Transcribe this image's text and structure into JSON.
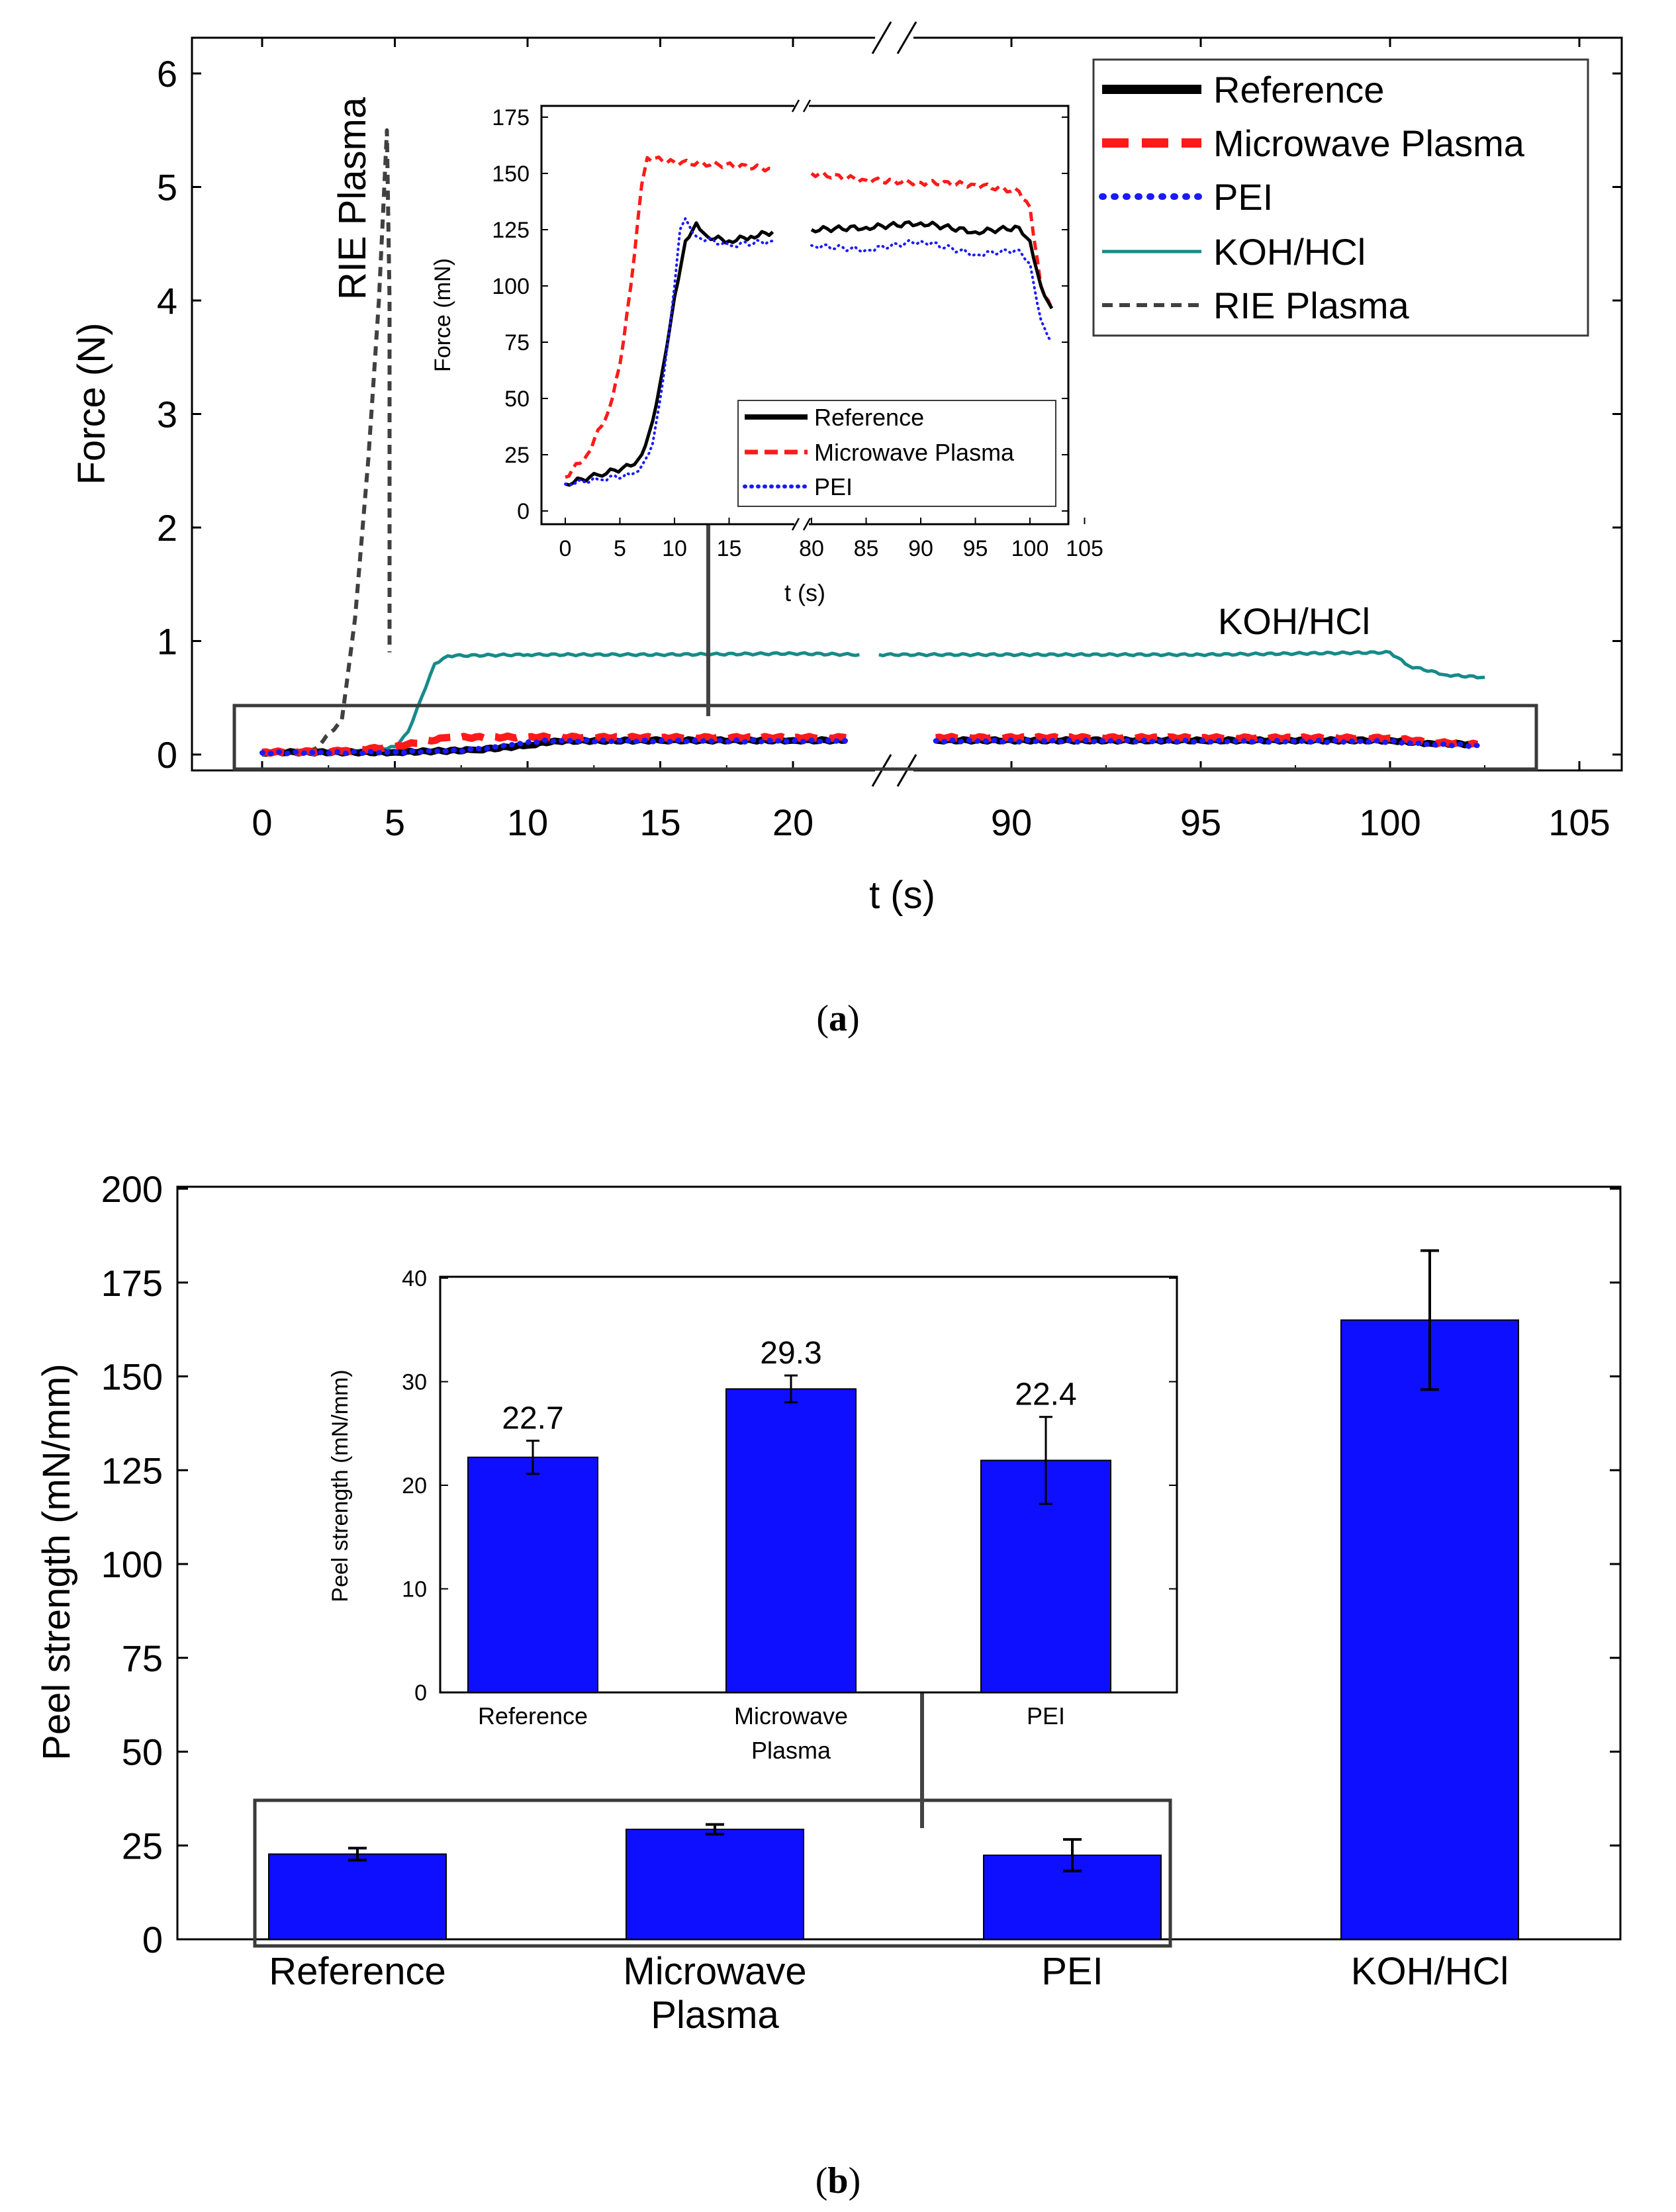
{
  "colors": {
    "reference": "#000000",
    "microwave": "#ff1a1a",
    "pei": "#1a1aff",
    "koh": "#178a8a",
    "rie": "#404040",
    "bar": "#0f0fff",
    "frame": "#3a3a3a",
    "arrow": "#444444"
  },
  "chart_data": [
    {
      "id": "a",
      "type": "line",
      "caption_letter": "a",
      "xlabel": "t (s)",
      "ylabel": "Force (N)",
      "y_ticks": [
        0,
        1,
        2,
        3,
        4,
        5,
        6
      ],
      "x_ticks": [
        0,
        5,
        10,
        15,
        20,
        90,
        95,
        100,
        105
      ],
      "x_segments": [
        [
          -1.2,
          22.5
        ],
        [
          86.3,
          105
        ]
      ],
      "ylim": [
        -0.1,
        6
      ],
      "legend": {
        "position": "top-right",
        "entries": [
          {
            "label": "Reference",
            "style": "reference"
          },
          {
            "label": "Microwave Plasma",
            "style": "microwave"
          },
          {
            "label": "PEI",
            "style": "pei"
          },
          {
            "label": "KOH/HCl",
            "style": "koh"
          },
          {
            "label": "RIE Plasma",
            "style": "rie"
          }
        ]
      },
      "annotations": {
        "rie_label": "RIE Plasma",
        "koh_label": "KOH/HCl"
      },
      "series": [
        {
          "name": "Reference",
          "style": "reference",
          "points": [
            [
              0,
              0.02
            ],
            [
              5,
              0.02
            ],
            [
              8,
              0.04
            ],
            [
              10,
              0.08
            ],
            [
              11,
              0.12
            ],
            [
              15,
              0.125
            ],
            [
              20,
              0.125
            ],
            [
              22,
              0.125
            ],
            [
              88,
              0.125
            ],
            [
              95,
              0.125
            ],
            [
              100,
              0.125
            ],
            [
              101,
              0.1
            ],
            [
              102.3,
              0.09
            ]
          ]
        },
        {
          "name": "Microwave Plasma",
          "style": "microwave",
          "points": [
            [
              0,
              0.02
            ],
            [
              3,
              0.03
            ],
            [
              5,
              0.07
            ],
            [
              7,
              0.15
            ],
            [
              10,
              0.155
            ],
            [
              15,
              0.15
            ],
            [
              20,
              0.15
            ],
            [
              22,
              0.15
            ],
            [
              88,
              0.15
            ],
            [
              95,
              0.148
            ],
            [
              100,
              0.145
            ],
            [
              101,
              0.11
            ],
            [
              102.3,
              0.09
            ]
          ]
        },
        {
          "name": "PEI",
          "style": "pei",
          "points": [
            [
              0,
              0.015
            ],
            [
              5,
              0.02
            ],
            [
              8,
              0.04
            ],
            [
              9.5,
              0.09
            ],
            [
              10.5,
              0.12
            ],
            [
              15,
              0.12
            ],
            [
              20,
              0.12
            ],
            [
              22,
              0.12
            ],
            [
              88,
              0.12
            ],
            [
              95,
              0.118
            ],
            [
              100,
              0.115
            ],
            [
              101,
              0.09
            ],
            [
              102.3,
              0.08
            ]
          ]
        },
        {
          "name": "KOH/HCl",
          "style": "koh",
          "points": [
            [
              0,
              0.02
            ],
            [
              4,
              0.03
            ],
            [
              5,
              0.07
            ],
            [
              5.5,
              0.2
            ],
            [
              6,
              0.5
            ],
            [
              6.5,
              0.8
            ],
            [
              7,
              0.87
            ],
            [
              10,
              0.88
            ],
            [
              15,
              0.88
            ],
            [
              20,
              0.89
            ],
            [
              22.5,
              0.88
            ],
            [
              86.5,
              0.88
            ],
            [
              95,
              0.88
            ],
            [
              100,
              0.9
            ],
            [
              100.5,
              0.78
            ],
            [
              101.5,
              0.7
            ],
            [
              102.5,
              0.68
            ]
          ]
        },
        {
          "name": "RIE Plasma",
          "style": "rie",
          "points": [
            [
              0,
              0
            ],
            [
              2,
              0.05
            ],
            [
              3,
              0.3
            ],
            [
              3.5,
              1.2
            ],
            [
              4,
              2.6
            ],
            [
              4.4,
              4.0
            ],
            [
              4.7,
              5.5
            ],
            [
              4.8,
              4.0
            ],
            [
              4.8,
              0.9
            ]
          ]
        }
      ],
      "zoom_box": {
        "x": [
          -1,
          103.2
        ],
        "y": [
          -0.1,
          0.42
        ]
      },
      "inset": {
        "xlabel": "t (s)",
        "ylabel": "Force (mN)",
        "y_ticks": [
          0,
          25,
          50,
          75,
          100,
          125,
          150,
          175
        ],
        "x_ticks": [
          0,
          5,
          10,
          15,
          80,
          85,
          90,
          95,
          100,
          105
        ],
        "x_segments": [
          [
            -2,
            19.3
          ],
          [
            78.8,
            105
          ]
        ],
        "ylim": [
          0,
          175
        ],
        "legend": {
          "position": "lower-right",
          "entries": [
            {
              "label": "Reference",
              "style": "reference"
            },
            {
              "label": "Microwave Plasma",
              "style": "microwave"
            },
            {
              "label": "PEI",
              "style": "pei"
            }
          ]
        },
        "series": [
          {
            "name": "Reference",
            "style": "reference",
            "points": [
              [
                0,
                12
              ],
              [
                3,
                16
              ],
              [
                6,
                20
              ],
              [
                7,
                25
              ],
              [
                8,
                40
              ],
              [
                9,
                65
              ],
              [
                10,
                95
              ],
              [
                11,
                120
              ],
              [
                12,
                128
              ],
              [
                13,
                122
              ],
              [
                15,
                120
              ],
              [
                17,
                122
              ],
              [
                19,
                124
              ],
              [
                80,
                125
              ],
              [
                85,
                126
              ],
              [
                90,
                128
              ],
              [
                95,
                124
              ],
              [
                99,
                126
              ],
              [
                100,
                120
              ],
              [
                101,
                100
              ],
              [
                102,
                90
              ]
            ]
          },
          {
            "name": "Microwave Plasma",
            "style": "microwave",
            "points": [
              [
                0,
                15
              ],
              [
                2,
                25
              ],
              [
                4,
                45
              ],
              [
                5,
                65
              ],
              [
                6,
                100
              ],
              [
                7,
                145
              ],
              [
                7.5,
                157
              ],
              [
                10,
                155
              ],
              [
                14,
                154
              ],
              [
                19,
                152
              ],
              [
                80,
                150
              ],
              [
                85,
                147
              ],
              [
                90,
                146
              ],
              [
                95,
                145
              ],
              [
                99,
                142
              ],
              [
                100,
                135
              ],
              [
                101,
                100
              ],
              [
                102,
                90
              ]
            ]
          },
          {
            "name": "PEI",
            "style": "pei",
            "points": [
              [
                0,
                12
              ],
              [
                3,
                14
              ],
              [
                6,
                16
              ],
              [
                7,
                20
              ],
              [
                8,
                30
              ],
              [
                9,
                60
              ],
              [
                10,
                100
              ],
              [
                10.5,
                125
              ],
              [
                11,
                130
              ],
              [
                12,
                122
              ],
              [
                15,
                118
              ],
              [
                19,
                120
              ],
              [
                80,
                118
              ],
              [
                85,
                116
              ],
              [
                90,
                120
              ],
              [
                95,
                114
              ],
              [
                99,
                116
              ],
              [
                100,
                110
              ],
              [
                101,
                85
              ],
              [
                102,
                75
              ]
            ]
          }
        ]
      }
    },
    {
      "id": "b",
      "type": "bar",
      "caption_letter": "b",
      "ylabel": "Peel strength (mN/mm)",
      "categories": [
        "Reference",
        "Microwave\nPlasma",
        "PEI",
        "KOH/HCl"
      ],
      "values": [
        22.7,
        29.3,
        22.4,
        165
      ],
      "errors": [
        1.6,
        1.3,
        4.2,
        18.5
      ],
      "ylim": [
        0,
        200
      ],
      "y_ticks": [
        0,
        25,
        50,
        75,
        100,
        125,
        150,
        175,
        200
      ],
      "inset": {
        "ylabel": "Peel strength (mN/mm)",
        "categories": [
          "Reference",
          "Microwave\nPlasma",
          "PEI"
        ],
        "values": [
          22.7,
          29.3,
          22.4
        ],
        "value_labels": [
          "22.7",
          "29.3",
          "22.4"
        ],
        "errors": [
          1.6,
          1.3,
          4.2
        ],
        "ylim": [
          0,
          40
        ],
        "y_ticks": [
          0,
          10,
          20,
          30,
          40
        ]
      }
    }
  ]
}
